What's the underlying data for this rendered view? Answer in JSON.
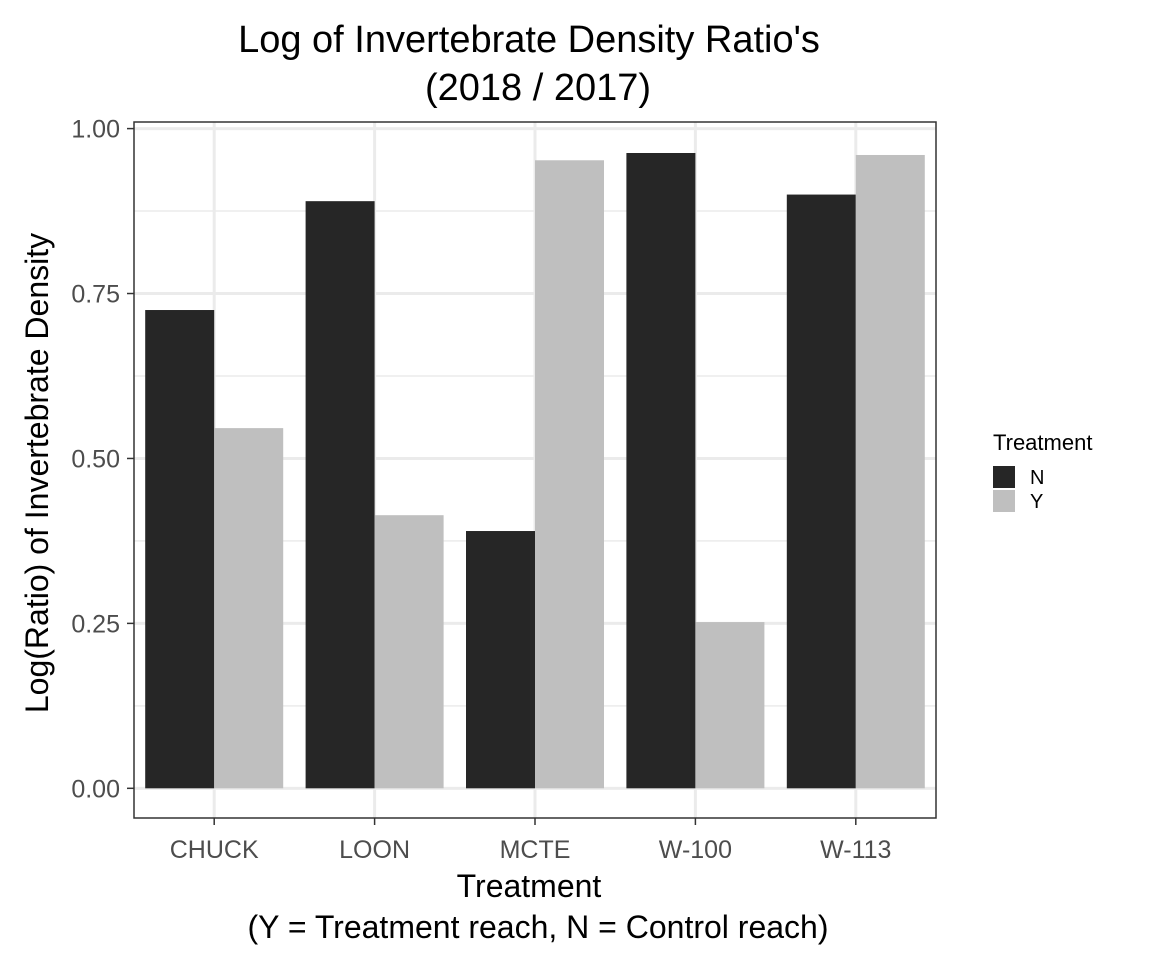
{
  "chart_data": {
    "type": "bar",
    "title_line1": "Log of Invertebrate Density Ratio's",
    "title_line2": "(2018 / 2017)",
    "xlabel_line1": "Treatment",
    "xlabel_line2": "(Y = Treatment reach, N = Control reach)",
    "ylabel": "Log(Ratio) of Invertebrate Density",
    "categories": [
      "CHUCK",
      "LOON",
      "MCTE",
      "W-100",
      "W-113"
    ],
    "series": [
      {
        "name": "N",
        "color": "#262626",
        "values": [
          0.725,
          0.89,
          0.39,
          0.963,
          0.9
        ]
      },
      {
        "name": "Y",
        "color": "#bfbfbf",
        "values": [
          0.546,
          0.414,
          0.952,
          0.252,
          0.96
        ]
      }
    ],
    "ylim": [
      -0.045,
      1.01
    ],
    "yticks": [
      0,
      0.25,
      0.5,
      0.75,
      1.0
    ],
    "ytick_labels": [
      "0.00",
      "0.25",
      "0.50",
      "0.75",
      "1.00"
    ],
    "grid": true,
    "legend": {
      "title": "Treatment",
      "position": "right"
    }
  }
}
